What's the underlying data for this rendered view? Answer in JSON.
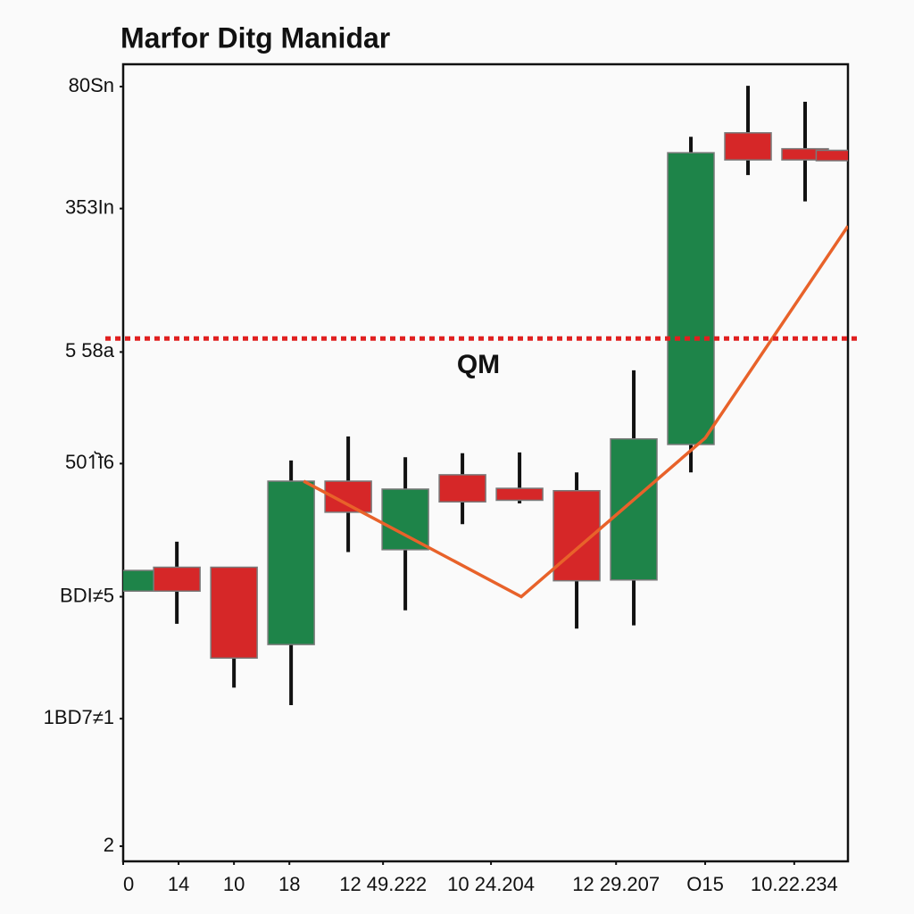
{
  "chart_data": {
    "type": "candlestick",
    "title": "Marfor Ditg Manidar",
    "annotation": "QM",
    "x": [
      0,
      0.75,
      1.75,
      2.75,
      3.75,
      4.75,
      5.75,
      6.75,
      7.75,
      8.75,
      9.75,
      10.75,
      11.75,
      12.35
    ],
    "open": [
      33.9,
      36.9,
      36.9,
      27.2,
      47.7,
      39.1,
      48.5,
      46.8,
      46.5,
      35.3,
      52.3,
      91.4,
      89.4,
      89.2
    ],
    "high": [
      36.5,
      40.1,
      36.9,
      50.3,
      53.3,
      50.7,
      51.2,
      51.3,
      48.8,
      61.6,
      90.9,
      97.3,
      95.3,
      89.2
    ],
    "low": [
      33.9,
      29.8,
      21.8,
      19.6,
      38.8,
      31.5,
      42.3,
      44.9,
      29.2,
      29.6,
      48.8,
      86.1,
      82.8,
      87.9
    ],
    "close": [
      36.5,
      33.9,
      25.5,
      47.7,
      43.8,
      46.7,
      45.1,
      45.3,
      35.2,
      53.0,
      88.9,
      88.0,
      88.0,
      87.9
    ],
    "up_color": "#1e8449",
    "down_color": "#d62728",
    "line": {
      "color": "#e8622a",
      "x": [
        2.97,
        6.78,
        10.0,
        12.5
      ],
      "values": [
        47.7,
        33.2,
        53.1,
        79.7
      ]
    },
    "hline": {
      "value": 65.6,
      "color": "#e02020"
    },
    "xlim": [
      -0.19,
      12.5
    ],
    "ylim": [
      0,
      100
    ],
    "xticks": [
      {
        "value": -0.19,
        "label": "0"
      },
      {
        "value": 0.78,
        "label": "14"
      },
      {
        "value": 1.75,
        "label": "10"
      },
      {
        "value": 2.72,
        "label": "18"
      },
      {
        "value": 4.36,
        "label": "12 49.222"
      },
      {
        "value": 6.25,
        "label": "10 24.204"
      },
      {
        "value": 8.44,
        "label": "12 29.207"
      },
      {
        "value": 10.0,
        "label": "O15"
      },
      {
        "value": 11.56,
        "label": "10.22.234"
      }
    ],
    "yticks": [
      {
        "value": 97.2,
        "label": "80Sn"
      },
      {
        "value": 81.9,
        "label": "353In"
      },
      {
        "value": 63.9,
        "label": "5 58a"
      },
      {
        "value": 49.9,
        "label": "501ॊ6"
      },
      {
        "value": 33.2,
        "label": "BDI≠5"
      },
      {
        "value": 17.9,
        "label": "1BD7≠1"
      },
      {
        "value": 1.9,
        "label": "2"
      }
    ]
  }
}
